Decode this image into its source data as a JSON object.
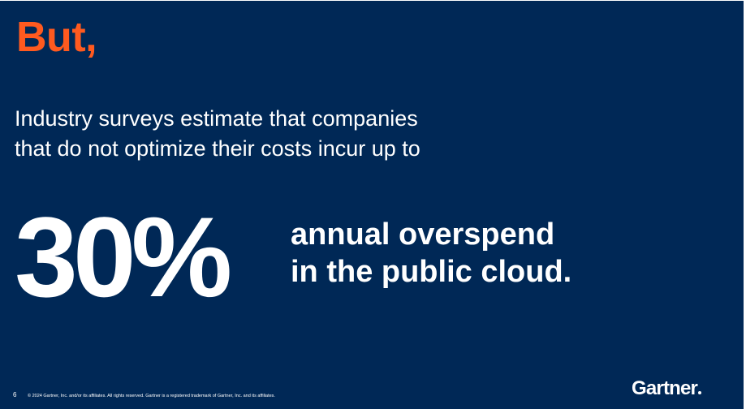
{
  "slide": {
    "headline": "But,",
    "intro_lines": [
      "Industry surveys estimate that companies",
      "that do not optimize their costs incur up to"
    ],
    "stat_value": "30%",
    "stat_description_lines": [
      "annual overspend",
      "in the public cloud."
    ]
  },
  "footer": {
    "page_number": "6",
    "copyright": "© 2024 Gartner, Inc. and/or its affiliates. All rights reserved. Gartner is a registered trademark of Gartner, Inc. and its affiliates.",
    "logo_text": "Gartner"
  },
  "colors": {
    "background": "#002856",
    "accent": "#ff5a1f",
    "text": "#ffffff"
  }
}
